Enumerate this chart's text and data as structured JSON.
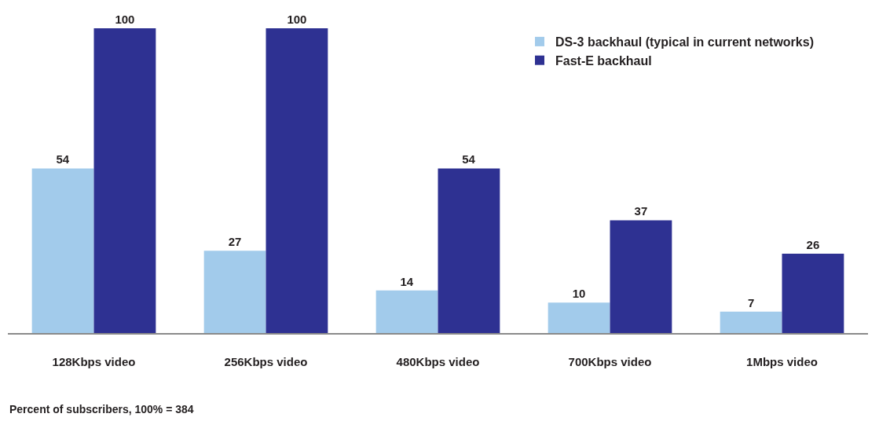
{
  "chart_data": {
    "type": "bar",
    "categories": [
      "128Kbps video",
      "256Kbps video",
      "480Kbps video",
      "700Kbps video",
      "1Mbps video"
    ],
    "series": [
      {
        "name": "DS-3 backhaul (typical in current networks)",
        "color": "#a2cbeb",
        "values": [
          54,
          27,
          14,
          10,
          7
        ]
      },
      {
        "name": "Fast-E backhaul",
        "color": "#2e3192",
        "values": [
          100,
          100,
          54,
          37,
          26
        ]
      }
    ],
    "ylim": [
      0,
      100
    ],
    "data_labels": true,
    "legend": "top right",
    "tick_labels": "x",
    "annotations": [
      "Percent of subscribers, 100% = 384"
    ]
  }
}
